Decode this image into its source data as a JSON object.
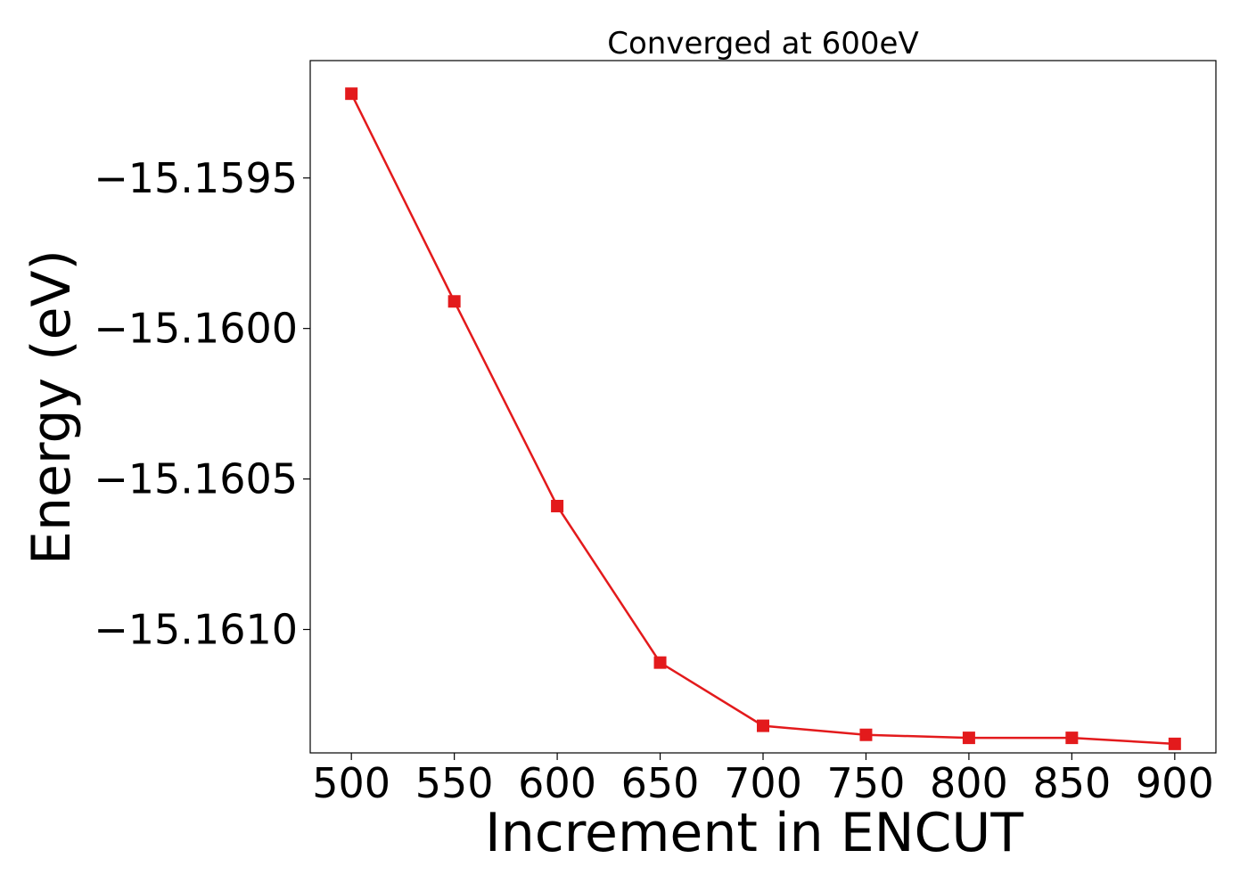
{
  "chart_data": {
    "type": "line",
    "title": "Converged at 600eV",
    "xlabel": "Increment in ENCUT",
    "ylabel": "Energy (eV)",
    "x": [
      500,
      550,
      600,
      650,
      700,
      750,
      800,
      850,
      900
    ],
    "x_tick_labels": [
      "500",
      "550",
      "600",
      "650",
      "700",
      "750",
      "800",
      "850",
      "900"
    ],
    "y_ticks": [
      -15.1595,
      -15.16,
      -15.1605,
      -15.161
    ],
    "y_tick_labels": [
      "−15.1595",
      "−15.1600",
      "−15.1605",
      "−15.1610"
    ],
    "xlim": [
      480,
      920
    ],
    "ylim": [
      -15.16141,
      -15.15911
    ],
    "grid": false,
    "series": [
      {
        "color": "#e31a1c",
        "marker": "square",
        "values": [
          -15.15922,
          -15.15991,
          -15.16059,
          -15.16111,
          -15.16132,
          -15.16135,
          -15.16136,
          -15.16136,
          -15.16138
        ]
      }
    ]
  }
}
